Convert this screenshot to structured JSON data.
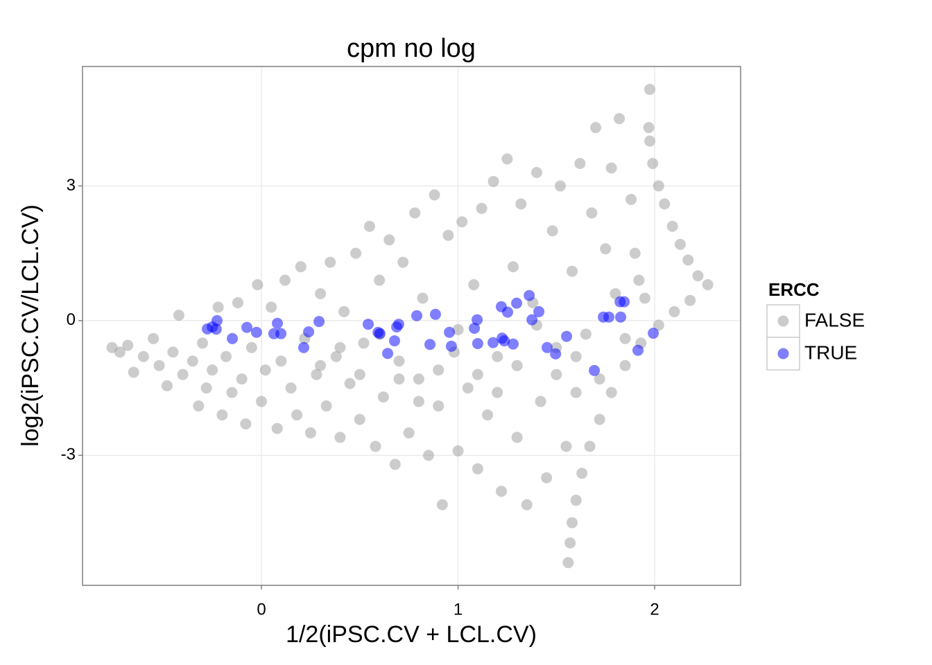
{
  "chart_data": {
    "type": "scatter",
    "title": "cpm no log",
    "x_label": "1/2(iPSC.CV + LCL.CV)",
    "y_label": "log2(iPSC.CV/LCL.CV)",
    "xlim": [
      -0.91,
      2.437
    ],
    "ylim": [
      -5.895,
      5.66
    ],
    "xticks": [
      0,
      1,
      2
    ],
    "yticks": [
      -3,
      0,
      3
    ],
    "grid": true,
    "legend_title": "ERCC",
    "legend_position": "right",
    "series": [
      {
        "name": "FALSE",
        "color": "#999999",
        "x": [
          -0.76,
          -0.72,
          -0.68,
          -0.65,
          -0.6,
          -0.55,
          -0.52,
          -0.48,
          -0.45,
          -0.42,
          -0.4,
          -0.35,
          -0.32,
          -0.3,
          -0.28,
          -0.25,
          -0.22,
          -0.2,
          -0.18,
          -0.15,
          -0.12,
          -0.1,
          -0.08,
          -0.05,
          -0.02,
          0.0,
          0.02,
          0.05,
          0.08,
          0.1,
          0.12,
          0.15,
          0.18,
          0.2,
          0.22,
          0.25,
          0.28,
          0.3,
          0.33,
          0.35,
          0.38,
          0.4,
          0.42,
          0.45,
          0.48,
          0.5,
          0.52,
          0.55,
          0.58,
          0.6,
          0.62,
          0.65,
          0.68,
          0.7,
          0.72,
          0.75,
          0.78,
          0.8,
          0.82,
          0.85,
          0.88,
          0.9,
          0.92,
          0.95,
          0.98,
          1.0,
          1.02,
          1.05,
          1.08,
          1.1,
          1.12,
          1.15,
          1.18,
          1.2,
          1.22,
          1.25,
          1.28,
          1.3,
          1.32,
          1.35,
          1.38,
          1.4,
          1.42,
          1.45,
          1.48,
          1.5,
          1.52,
          1.55,
          1.58,
          1.6,
          1.62,
          1.65,
          1.68,
          1.7,
          1.72,
          1.75,
          1.78,
          1.8,
          1.82,
          1.85,
          1.88,
          1.9,
          1.92,
          1.95,
          0.3,
          0.5,
          0.7,
          0.9,
          1.1,
          1.3,
          1.5,
          0.6,
          1.0,
          1.4,
          0.8,
          1.2,
          0.4,
          1.6,
          1.975,
          1.97,
          1.975,
          1.99,
          2.02,
          2.05,
          2.09,
          2.13,
          2.17,
          2.22,
          2.27,
          1.56,
          1.57,
          1.58,
          1.6,
          1.63,
          1.67,
          1.72,
          1.78,
          1.85,
          1.93,
          2.02,
          2.1,
          2.18
        ],
        "y": [
          -0.6,
          -0.7,
          -0.55,
          -1.15,
          -0.8,
          -0.4,
          -1.0,
          -1.45,
          -0.7,
          0.12,
          -1.2,
          -0.9,
          -1.9,
          -0.5,
          -1.5,
          -1.1,
          0.3,
          -2.1,
          -0.8,
          -1.6,
          0.4,
          -1.3,
          -2.3,
          -0.6,
          0.8,
          -1.8,
          -1.1,
          0.3,
          -2.4,
          -0.9,
          0.9,
          -1.5,
          -2.1,
          1.2,
          -0.4,
          -2.5,
          -1.2,
          0.6,
          -1.9,
          1.3,
          -0.8,
          -2.6,
          0.2,
          -1.4,
          1.5,
          -2.2,
          -0.5,
          2.1,
          -2.8,
          0.9,
          -1.7,
          1.8,
          -3.2,
          -0.9,
          1.3,
          -2.5,
          2.4,
          -1.3,
          0.5,
          -3.0,
          2.8,
          -1.9,
          -4.1,
          1.9,
          -0.7,
          -2.9,
          2.2,
          -1.5,
          0.8,
          -3.3,
          2.5,
          -2.1,
          3.1,
          -0.8,
          -3.8,
          3.6,
          1.2,
          -2.6,
          2.6,
          -4.1,
          0.4,
          3.3,
          -1.8,
          -3.5,
          2.0,
          -0.6,
          3.0,
          -2.8,
          1.1,
          -1.6,
          3.5,
          -0.3,
          2.4,
          4.3,
          -1.3,
          1.6,
          3.4,
          0.6,
          4.5,
          -0.4,
          2.7,
          1.5,
          0.9,
          0.5,
          -1.0,
          -1.2,
          -1.3,
          -1.1,
          -1.2,
          -1.0,
          -1.2,
          -0.3,
          -0.2,
          -0.1,
          -1.8,
          -1.6,
          -0.6,
          -0.8,
          5.15,
          4.3,
          4.0,
          3.5,
          3.0,
          2.6,
          2.1,
          1.7,
          1.35,
          1.0,
          0.8,
          -5.39,
          -4.95,
          -4.5,
          -4.0,
          -3.4,
          -2.8,
          -2.2,
          -1.6,
          -1.0,
          -0.5,
          -0.1,
          0.2,
          0.45
        ]
      },
      {
        "name": "TRUE",
        "color": "#0000ff",
        "x": [
          -0.275,
          -0.25,
          -0.226,
          -0.23,
          -0.148,
          -0.074,
          -0.025,
          0.081,
          0.063,
          0.099,
          0.215,
          0.24,
          0.293,
          0.543,
          0.593,
          0.603,
          0.642,
          0.677,
          0.688,
          0.698,
          0.79,
          0.857,
          0.885,
          0.956,
          0.966,
          1.083,
          1.097,
          1.1,
          1.178,
          1.22,
          1.224,
          1.235,
          1.252,
          1.28,
          1.298,
          1.362,
          1.376,
          1.411,
          1.453,
          1.496,
          1.552,
          1.693,
          1.739,
          1.767,
          1.827,
          1.824,
          1.845,
          1.915,
          1.993
        ],
        "y": [
          -0.185,
          -0.14,
          0.0,
          -0.19,
          -0.4,
          -0.15,
          -0.26,
          -0.06,
          -0.29,
          -0.29,
          -0.6,
          -0.25,
          -0.02,
          -0.08,
          -0.26,
          -0.29,
          -0.73,
          -0.45,
          -0.14,
          -0.08,
          0.11,
          -0.53,
          0.14,
          -0.26,
          -0.57,
          -0.17,
          0.02,
          -0.51,
          -0.49,
          0.31,
          -0.39,
          -0.45,
          0.19,
          -0.52,
          0.39,
          0.56,
          0.02,
          0.2,
          -0.6,
          -0.74,
          -0.35,
          -1.11,
          0.08,
          0.08,
          0.08,
          0.42,
          0.42,
          -0.66,
          -0.28
        ]
      }
    ]
  }
}
